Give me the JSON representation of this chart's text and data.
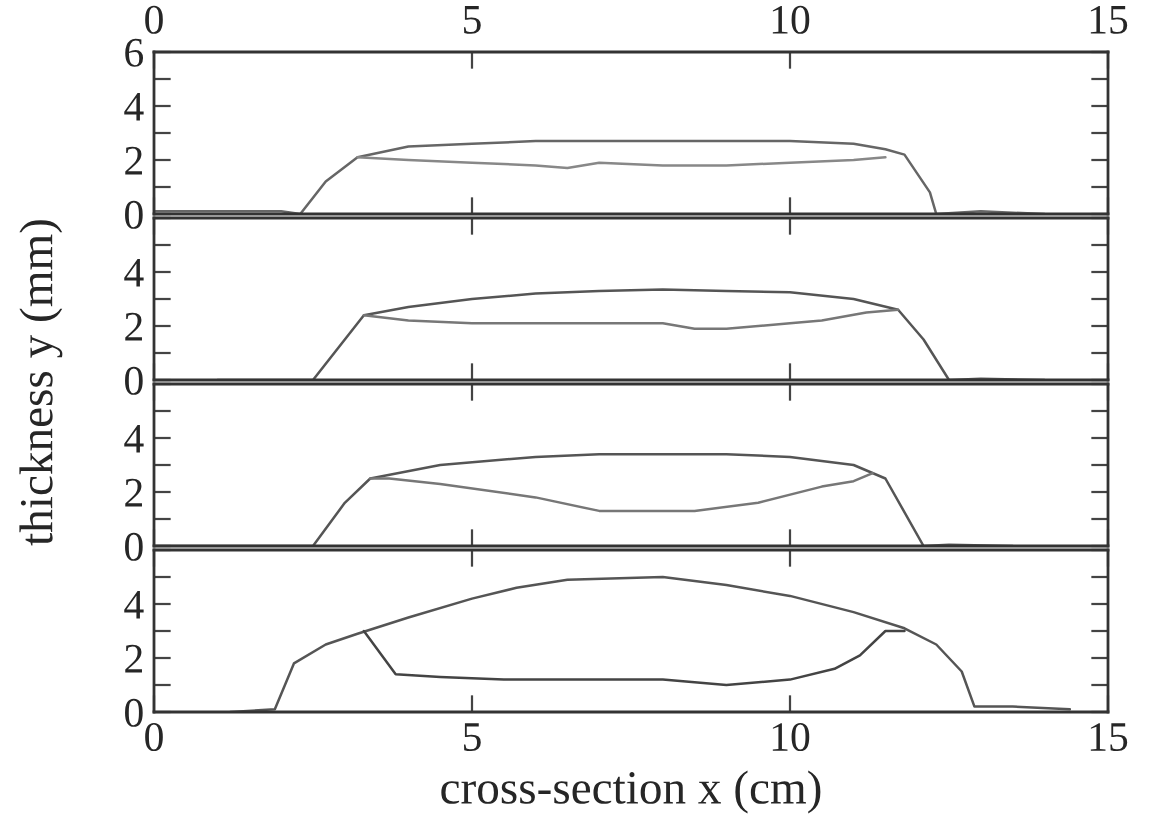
{
  "chart_data": [
    {
      "type": "line",
      "xlim": [
        0,
        15
      ],
      "xticks": [
        {
          "value": 0,
          "label": null
        },
        {
          "value": 5,
          "label": null
        },
        {
          "value": 10,
          "label": null
        },
        {
          "value": 15,
          "label": null
        }
      ],
      "x2lim": [
        0,
        15
      ],
      "x2ticks": [
        0,
        5,
        10,
        15
      ],
      "ylim": [
        0,
        6
      ],
      "yticks": [
        0,
        {
          "value": 1,
          "label": null
        },
        2,
        {
          "value": 3,
          "label": null
        },
        4,
        {
          "value": 5,
          "label": null
        },
        6
      ],
      "tick_labels": "y",
      "grid": false,
      "legend": false,
      "line_style": "solid",
      "marker": "none",
      "series": [
        {
          "color": "#666666",
          "x": [
            0,
            1,
            2,
            2.3,
            2.7,
            3.2,
            4,
            5,
            6,
            7,
            8,
            9,
            10,
            11,
            11.5,
            11.8,
            12.2,
            12.3,
            13,
            14
          ],
          "values": [
            0.1,
            0.1,
            0.1,
            0,
            1.2,
            2.1,
            2.5,
            2.6,
            2.7,
            2.7,
            2.7,
            2.7,
            2.7,
            2.6,
            2.4,
            2.2,
            0.8,
            0,
            0.1,
            0
          ]
        },
        {
          "color": "#888888",
          "x": [
            3.2,
            4,
            5,
            6,
            6.5,
            7,
            8,
            9,
            10,
            11,
            11.5
          ],
          "values": [
            2.1,
            2.0,
            1.9,
            1.8,
            1.7,
            1.9,
            1.8,
            1.8,
            1.9,
            2.0,
            2.1
          ]
        }
      ]
    },
    {
      "type": "line",
      "xlim": [
        0,
        15
      ],
      "xticks": [
        {
          "value": 0,
          "label": null
        },
        {
          "value": 5,
          "label": null
        },
        {
          "value": 10,
          "label": null
        },
        {
          "value": 15,
          "label": null
        }
      ],
      "ylim": [
        0,
        6
      ],
      "yticks": [
        0,
        {
          "value": 1,
          "label": null
        },
        2,
        {
          "value": 3,
          "label": null
        },
        4,
        {
          "value": 5,
          "label": null
        },
        {
          "value": 6,
          "label": null
        }
      ],
      "tick_labels": "y",
      "ylabel": "thickness y (mm)",
      "series": [
        {
          "color": "#555555",
          "x": [
            1,
            2,
            2.5,
            3.3,
            4,
            5,
            6,
            7,
            8,
            9,
            10,
            11,
            11.7,
            12.1,
            12.5,
            13,
            14
          ],
          "values": [
            0,
            0,
            0,
            2.4,
            2.7,
            3.0,
            3.2,
            3.3,
            3.35,
            3.3,
            3.25,
            3.0,
            2.6,
            1.5,
            0,
            0.05,
            0
          ]
        },
        {
          "color": "#777777",
          "x": [
            3.3,
            4,
            5,
            6,
            7,
            8,
            8.5,
            9,
            10,
            10.5,
            11.2,
            11.7
          ],
          "values": [
            2.4,
            2.2,
            2.1,
            2.1,
            2.1,
            2.1,
            1.9,
            1.9,
            2.1,
            2.2,
            2.5,
            2.6
          ]
        }
      ]
    },
    {
      "type": "line",
      "xlim": [
        0,
        15
      ],
      "xticks": [
        {
          "value": 0,
          "label": null
        },
        {
          "value": 5,
          "label": null
        },
        {
          "value": 10,
          "label": null
        },
        {
          "value": 15,
          "label": null
        }
      ],
      "ylim": [
        0,
        6
      ],
      "yticks": [
        0,
        {
          "value": 1,
          "label": null
        },
        2,
        {
          "value": 3,
          "label": null
        },
        4,
        {
          "value": 5,
          "label": null
        },
        {
          "value": 6,
          "label": null
        }
      ],
      "tick_labels": "y",
      "series": [
        {
          "color": "#555555",
          "x": [
            0,
            1,
            2,
            2.5,
            3,
            3.4,
            4.5,
            6,
            7,
            8,
            9,
            10,
            11,
            11.5,
            12.1,
            12.5,
            13.5
          ],
          "values": [
            0,
            0,
            0,
            0,
            1.6,
            2.5,
            3.0,
            3.3,
            3.4,
            3.4,
            3.4,
            3.3,
            3.0,
            2.5,
            0,
            0.05,
            0
          ]
        },
        {
          "color": "#777777",
          "x": [
            3.4,
            3.7,
            4.5,
            6,
            7,
            8,
            8.5,
            9.5,
            10.5,
            11.0,
            11.3
          ],
          "values": [
            2.5,
            2.5,
            2.3,
            1.8,
            1.3,
            1.3,
            1.3,
            1.6,
            2.2,
            2.4,
            2.7
          ]
        }
      ]
    },
    {
      "type": "line",
      "xlim": [
        0,
        15
      ],
      "xticks": [
        0,
        5,
        10,
        15
      ],
      "ylim": [
        0,
        6
      ],
      "yticks": [
        0,
        {
          "value": 1,
          "label": null
        },
        2,
        {
          "value": 3,
          "label": null
        },
        4,
        {
          "value": 5,
          "label": null
        },
        {
          "value": 6,
          "label": null
        }
      ],
      "xlabel": "cross-section x (cm)",
      "series": [
        {
          "color": "#555555",
          "x": [
            1.2,
            1.9,
            2.2,
            2.7,
            3.2,
            4,
            5,
            5.7,
            6.5,
            8,
            9,
            10,
            11,
            11.8,
            12.3,
            12.7,
            12.9,
            13.5,
            14.4
          ],
          "values": [
            0,
            0.1,
            1.8,
            2.5,
            2.9,
            3.5,
            4.2,
            4.6,
            4.9,
            5.0,
            4.7,
            4.3,
            3.7,
            3.1,
            2.5,
            1.5,
            0.2,
            0.2,
            0.1
          ]
        },
        {
          "color": "#444444",
          "x": [
            3.3,
            3.8,
            4.5,
            5.5,
            7,
            8,
            9,
            10,
            10.7,
            11.1,
            11.5,
            11.8
          ],
          "values": [
            3.0,
            1.4,
            1.3,
            1.2,
            1.2,
            1.2,
            1.0,
            1.2,
            1.6,
            2.1,
            3.0,
            3.0
          ]
        }
      ]
    }
  ]
}
